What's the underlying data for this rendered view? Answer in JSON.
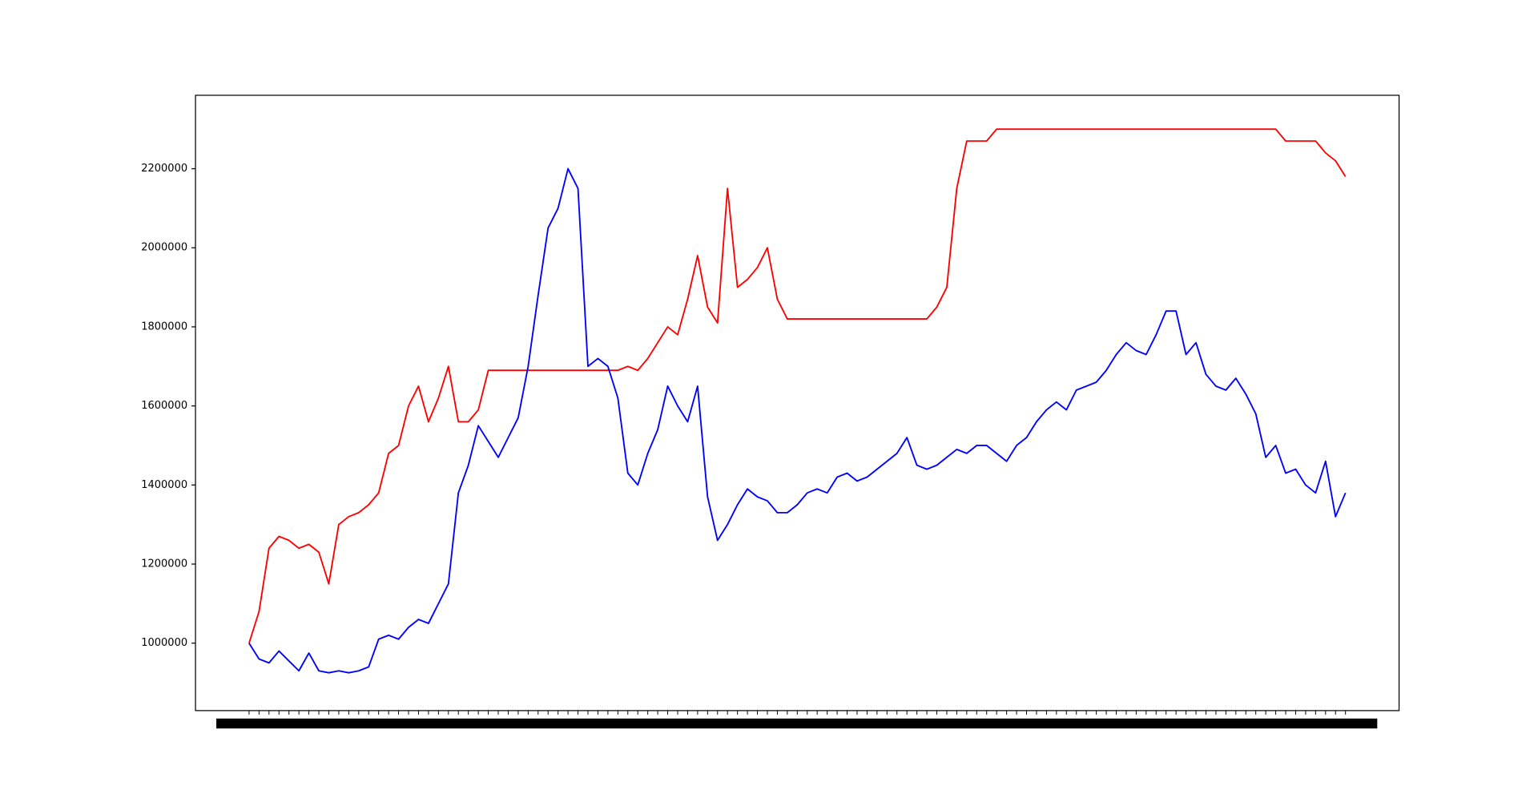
{
  "chart_data": {
    "type": "line",
    "categories": [
      null,
      null,
      null,
      null,
      null,
      null,
      null,
      null,
      null,
      null,
      null,
      null,
      null,
      null,
      null,
      null,
      null,
      null,
      null,
      null,
      null,
      null,
      null,
      null,
      null,
      null,
      null,
      null,
      null,
      null,
      null,
      null,
      null,
      null,
      null,
      null,
      null,
      null,
      null,
      null,
      null,
      null,
      null,
      null,
      null,
      null,
      null,
      null,
      null,
      null,
      null,
      null,
      null,
      null,
      null,
      null,
      null,
      null,
      null,
      null,
      null,
      null,
      null,
      null,
      null,
      null,
      null,
      null,
      null,
      null,
      null,
      null,
      null,
      null,
      null,
      null,
      null,
      null,
      null,
      null,
      null,
      null,
      null,
      null,
      null,
      null,
      null,
      null,
      null,
      null,
      null,
      null,
      null,
      null,
      null,
      null,
      null,
      null,
      null,
      null,
      null,
      null,
      null,
      null,
      null,
      null,
      null,
      null,
      null,
      null,
      null
    ],
    "series": [
      {
        "color": "#ff0000",
        "values": [
          1000000,
          1080000,
          1240000,
          1270000,
          1260000,
          1240000,
          1250000,
          1230000,
          1150000,
          1300000,
          1320000,
          1330000,
          1350000,
          1380000,
          1480000,
          1500000,
          1600000,
          1650000,
          1560000,
          1620000,
          1700000,
          1560000,
          1560000,
          1590000,
          1690000,
          1690000,
          1690000,
          1690000,
          1690000,
          1690000,
          1690000,
          1690000,
          1690000,
          1690000,
          1690000,
          1690000,
          1690000,
          1690000,
          1700000,
          1690000,
          1720000,
          1760000,
          1800000,
          1780000,
          1870000,
          1980000,
          1850000,
          1810000,
          2150000,
          1900000,
          1920000,
          1950000,
          2000000,
          1870000,
          1820000,
          1820000,
          1820000,
          1820000,
          1820000,
          1820000,
          1820000,
          1820000,
          1820000,
          1820000,
          1820000,
          1820000,
          1820000,
          1820000,
          1820000,
          1850000,
          1900000,
          2150000,
          2270000,
          2270000,
          2270000,
          2300000,
          2300000,
          2300000,
          2300000,
          2300000,
          2300000,
          2300000,
          2300000,
          2300000,
          2300000,
          2300000,
          2300000,
          2300000,
          2300000,
          2300000,
          2300000,
          2300000,
          2300000,
          2300000,
          2300000,
          2300000,
          2300000,
          2300000,
          2300000,
          2300000,
          2300000,
          2300000,
          2300000,
          2300000,
          2270000,
          2270000,
          2270000,
          2270000,
          2240000,
          2220000,
          2180000
        ]
      },
      {
        "color": "#0000ff",
        "values": [
          1000000,
          960000,
          950000,
          980000,
          955000,
          930000,
          975000,
          930000,
          925000,
          930000,
          925000,
          930000,
          940000,
          1010000,
          1020000,
          1010000,
          1040000,
          1060000,
          1050000,
          1100000,
          1150000,
          1380000,
          1450000,
          1550000,
          1510000,
          1470000,
          1520000,
          1570000,
          1700000,
          1880000,
          2050000,
          2100000,
          2200000,
          2150000,
          1700000,
          1720000,
          1700000,
          1620000,
          1430000,
          1400000,
          1480000,
          1540000,
          1650000,
          1600000,
          1560000,
          1650000,
          1370000,
          1260000,
          1300000,
          1350000,
          1390000,
          1370000,
          1360000,
          1330000,
          1330000,
          1350000,
          1380000,
          1390000,
          1380000,
          1420000,
          1430000,
          1410000,
          1420000,
          1440000,
          1460000,
          1480000,
          1520000,
          1450000,
          1440000,
          1450000,
          1470000,
          1490000,
          1480000,
          1500000,
          1500000,
          1480000,
          1460000,
          1500000,
          1520000,
          1560000,
          1590000,
          1610000,
          1590000,
          1640000,
          1650000,
          1660000,
          1690000,
          1730000,
          1760000,
          1740000,
          1730000,
          1780000,
          1840000,
          1840000,
          1730000,
          1760000,
          1680000,
          1650000,
          1640000,
          1670000,
          1630000,
          1580000,
          1470000,
          1500000,
          1430000,
          1440000,
          1400000,
          1380000,
          1460000,
          1320000,
          1380000
        ]
      }
    ],
    "ylim": [
      829400,
      2385700
    ],
    "yticks": [
      1000000,
      1200000,
      1400000,
      1600000,
      1800000,
      2000000,
      2200000
    ]
  }
}
